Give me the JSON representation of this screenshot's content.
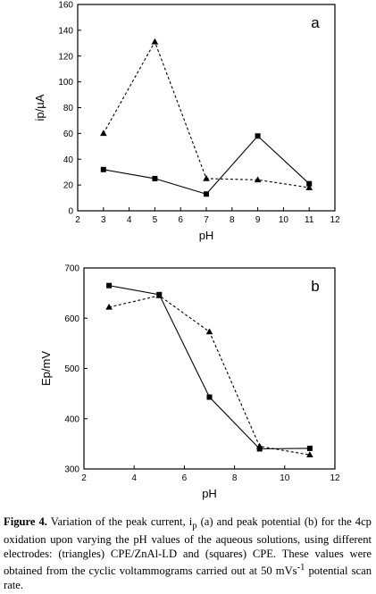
{
  "chart_data": [
    {
      "type": "line",
      "panel_label": "a",
      "xlabel": "pH",
      "ylabel": "ip/µA",
      "xlim": [
        2,
        12
      ],
      "ylim": [
        0,
        160
      ],
      "xticks": [
        2,
        3,
        4,
        5,
        6,
        7,
        8,
        9,
        10,
        11,
        12
      ],
      "yticks": [
        0,
        20,
        40,
        60,
        80,
        100,
        120,
        140,
        160
      ],
      "x": [
        3,
        5,
        7,
        9,
        11
      ],
      "series": [
        {
          "marker": "triangle",
          "line_style": "dashed",
          "values": [
            60,
            131,
            25,
            24,
            18
          ]
        },
        {
          "marker": "square",
          "line_style": "solid",
          "values": [
            32,
            25,
            13,
            58,
            21
          ]
        }
      ]
    },
    {
      "type": "line",
      "panel_label": "b",
      "xlabel": "pH",
      "ylabel": "Ep/mV",
      "xlim": [
        2,
        12
      ],
      "ylim": [
        300,
        700
      ],
      "xticks": [
        2,
        4,
        6,
        8,
        10,
        12
      ],
      "yticks": [
        300,
        400,
        500,
        600,
        700
      ],
      "x": [
        3,
        5,
        7,
        9,
        11
      ],
      "series": [
        {
          "marker": "triangle",
          "line_style": "dashed",
          "values": [
            622,
            645,
            573,
            345,
            328
          ]
        },
        {
          "marker": "square",
          "line_style": "solid",
          "values": [
            665,
            647,
            443,
            340,
            341
          ]
        }
      ]
    }
  ],
  "caption": {
    "label": "Figure 4.",
    "t1": " Variation of the peak current, i",
    "sub": "p",
    "t2": " (a) and peak potential (b) for the 4cp oxidation upon varying the pH values of the aqueous solutions, using different electrodes: (triangles) CPE/ZnAl-LD and (squares) CPE. These values were obtained from the cyclic voltammograms carried out at 50 mVs",
    "sup": "-1",
    "t3": " potential scan rate."
  }
}
